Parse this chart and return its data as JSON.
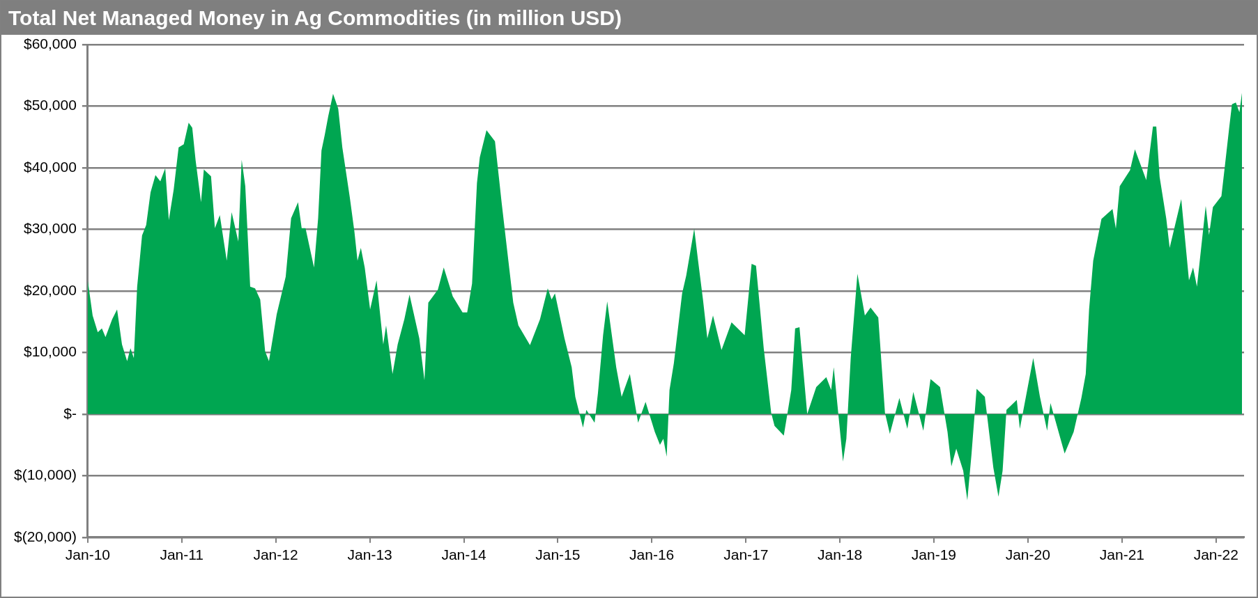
{
  "chart_data": {
    "type": "area",
    "title": "Total Net Managed Money in Ag Commodities (in million USD)",
    "x": [
      "2010-01-01",
      "2010-01-20",
      "2010-02-09",
      "2010-02-25",
      "2010-03-11",
      "2010-04-06",
      "2010-04-25",
      "2010-05-14",
      "2010-06-03",
      "2010-06-16",
      "2010-06-29",
      "2010-07-12",
      "2010-07-31",
      "2010-08-16",
      "2010-09-02",
      "2010-09-21",
      "2010-10-10",
      "2010-10-29",
      "2010-11-12",
      "2010-12-01",
      "2010-12-20",
      "2011-01-09",
      "2011-01-28",
      "2011-02-11",
      "2011-02-24",
      "2011-03-17",
      "2011-03-28",
      "2011-04-25",
      "2011-05-10",
      "2011-05-29",
      "2011-06-25",
      "2011-07-14",
      "2011-08-09",
      "2011-08-22",
      "2011-09-05",
      "2011-09-24",
      "2011-10-13",
      "2011-11-02",
      "2011-11-21",
      "2011-12-06",
      "2012-01-05",
      "2012-02-09",
      "2012-03-01",
      "2012-03-28",
      "2012-04-11",
      "2012-04-26",
      "2012-05-29",
      "2012-06-14",
      "2012-06-27",
      "2012-07-10",
      "2012-07-23",
      "2012-08-11",
      "2012-08-31",
      "2012-09-16",
      "2012-10-15",
      "2012-11-02",
      "2012-11-14",
      "2012-11-27",
      "2012-12-12",
      "2013-01-02",
      "2013-01-27",
      "2013-02-22",
      "2013-03-05",
      "2013-03-30",
      "2013-04-19",
      "2013-05-15",
      "2013-06-04",
      "2013-07-12",
      "2013-08-01",
      "2013-08-16",
      "2013-09-22",
      "2013-10-15",
      "2013-11-19",
      "2013-12-27",
      "2014-01-14",
      "2014-02-02",
      "2014-02-21",
      "2014-03-04",
      "2014-03-30",
      "2014-05-02",
      "2014-05-28",
      "2014-06-23",
      "2014-07-12",
      "2014-08-01",
      "2014-09-15",
      "2014-10-24",
      "2014-11-23",
      "2014-12-08",
      "2014-12-21",
      "2015-01-27",
      "2015-02-24",
      "2015-03-10",
      "2015-04-09",
      "2015-04-22",
      "2015-05-24",
      "2015-06-06",
      "2015-06-26",
      "2015-07-12",
      "2015-08-16",
      "2015-09-06",
      "2015-10-08",
      "2015-11-09",
      "2015-12-08",
      "2016-01-13",
      "2016-02-02",
      "2016-02-15",
      "2016-02-28",
      "2016-03-10",
      "2016-03-27",
      "2016-04-28",
      "2016-05-14",
      "2016-06-14",
      "2016-06-29",
      "2016-07-18",
      "2016-08-04",
      "2016-08-26",
      "2016-09-28",
      "2016-11-06",
      "2016-12-27",
      "2017-01-23",
      "2017-02-09",
      "2017-03-11",
      "2017-04-09",
      "2017-04-22",
      "2017-05-28",
      "2017-06-26",
      "2017-07-11",
      "2017-07-28",
      "2017-08-27",
      "2017-10-01",
      "2017-11-09",
      "2017-11-28",
      "2017-12-08",
      "2018-01-13",
      "2018-01-26",
      "2018-02-12",
      "2018-03-10",
      "2018-04-08",
      "2018-04-30",
      "2018-05-30",
      "2018-06-25",
      "2018-07-14",
      "2018-08-20",
      "2018-09-20",
      "2018-10-13",
      "2018-11-21",
      "2018-12-19",
      "2019-01-25",
      "2019-02-23",
      "2019-03-10",
      "2019-03-29",
      "2019-04-25",
      "2019-05-11",
      "2019-05-27",
      "2019-06-16",
      "2019-07-18",
      "2019-08-20",
      "2019-09-09",
      "2019-09-25",
      "2019-10-10",
      "2019-11-19",
      "2019-12-01",
      "2020-01-22",
      "2020-02-17",
      "2020-03-16",
      "2020-03-29",
      "2020-05-23",
      "2020-06-27",
      "2020-07-27",
      "2020-08-13",
      "2020-08-26",
      "2020-09-11",
      "2020-10-13",
      "2020-11-25",
      "2020-12-08",
      "2020-12-23",
      "2021-02-01",
      "2021-02-20",
      "2021-04-05",
      "2021-05-01",
      "2021-05-14",
      "2021-05-27",
      "2021-06-22",
      "2021-07-05",
      "2021-08-19",
      "2021-09-18",
      "2021-10-04",
      "2021-10-19",
      "2021-11-22",
      "2021-12-05",
      "2021-12-20",
      "2022-01-22",
      "2022-02-04",
      "2022-02-21",
      "2022-03-04",
      "2022-03-19",
      "2022-04-02",
      "2022-04-12"
    ],
    "series": [
      {
        "color": "#00a651",
        "values": [
          21700,
          16000,
          13300,
          13900,
          12500,
          15400,
          17000,
          11300,
          8600,
          10700,
          9100,
          20700,
          29000,
          30700,
          36000,
          38800,
          37800,
          39900,
          31500,
          36500,
          43300,
          43800,
          47300,
          46500,
          41200,
          34400,
          39700,
          38600,
          30200,
          32300,
          24900,
          32800,
          28000,
          41300,
          37000,
          20700,
          20400,
          18600,
          10200,
          8600,
          16200,
          22300,
          31800,
          34400,
          30200,
          30200,
          23800,
          31800,
          42800,
          45400,
          48300,
          52000,
          49600,
          43300,
          35200,
          29600,
          24900,
          27000,
          23800,
          17000,
          21700,
          11300,
          14400,
          6500,
          11300,
          15400,
          19400,
          12300,
          5500,
          18100,
          20200,
          23800,
          19100,
          16500,
          16500,
          21200,
          37500,
          41700,
          46100,
          44300,
          34300,
          24900,
          18100,
          14400,
          11200,
          15400,
          20400,
          18600,
          19600,
          12300,
          7600,
          2800,
          -2200,
          700,
          -1400,
          3400,
          12800,
          18300,
          7600,
          2800,
          6500,
          -1400,
          2000,
          -2900,
          -5000,
          -4000,
          -6900,
          3900,
          8300,
          19600,
          22500,
          30100,
          24900,
          18600,
          12300,
          16000,
          10400,
          14900,
          12800,
          24400,
          24100,
          10700,
          200,
          -1900,
          -3500,
          3900,
          13900,
          14100,
          0,
          4400,
          6000,
          3900,
          7600,
          -7700,
          -4000,
          9100,
          22800,
          16000,
          17300,
          15700,
          200,
          -3200,
          2600,
          -2400,
          3600,
          -2700,
          5700,
          4400,
          -2900,
          -8500,
          -5600,
          -9200,
          -14000,
          -6600,
          4100,
          2800,
          -8700,
          -13400,
          -9200,
          700,
          2300,
          -2400,
          9100,
          2800,
          -2700,
          1800,
          -6400,
          -2900,
          2600,
          6500,
          17000,
          24900,
          31700,
          33300,
          30100,
          37000,
          39600,
          43000,
          38000,
          46700,
          46700,
          38500,
          31700,
          27000,
          34900,
          21700,
          23800,
          20700,
          33800,
          29100,
          33600,
          35400,
          40100,
          46400,
          50300,
          50600,
          49000,
          52200
        ]
      }
    ],
    "xlim": [
      "2010-01-01",
      "2022-04-20"
    ],
    "xticks": [
      {
        "value": "2010-01-01",
        "label": "Jan-10"
      },
      {
        "value": "2011-01-01",
        "label": "Jan-11"
      },
      {
        "value": "2012-01-01",
        "label": "Jan-12"
      },
      {
        "value": "2013-01-01",
        "label": "Jan-13"
      },
      {
        "value": "2014-01-01",
        "label": "Jan-14"
      },
      {
        "value": "2015-01-01",
        "label": "Jan-15"
      },
      {
        "value": "2016-01-01",
        "label": "Jan-16"
      },
      {
        "value": "2017-01-01",
        "label": "Jan-17"
      },
      {
        "value": "2018-01-01",
        "label": "Jan-18"
      },
      {
        "value": "2019-01-01",
        "label": "Jan-19"
      },
      {
        "value": "2020-01-01",
        "label": "Jan-20"
      },
      {
        "value": "2021-01-01",
        "label": "Jan-21"
      },
      {
        "value": "2022-01-01",
        "label": "Jan-22"
      }
    ],
    "ylim": [
      -20000,
      60000
    ],
    "yticks": [
      {
        "value": -20000,
        "label": "$(20,000)"
      },
      {
        "value": -10000,
        "label": "$(10,000)"
      },
      {
        "value": 0,
        "label": "$-"
      },
      {
        "value": 10000,
        "label": "$10,000"
      },
      {
        "value": 20000,
        "label": "$20,000"
      },
      {
        "value": 30000,
        "label": "$30,000"
      },
      {
        "value": 40000,
        "label": "$40,000"
      },
      {
        "value": 50000,
        "label": "$50,000"
      },
      {
        "value": 60000,
        "label": "$60,000"
      }
    ],
    "grid": "y",
    "legend": false
  }
}
